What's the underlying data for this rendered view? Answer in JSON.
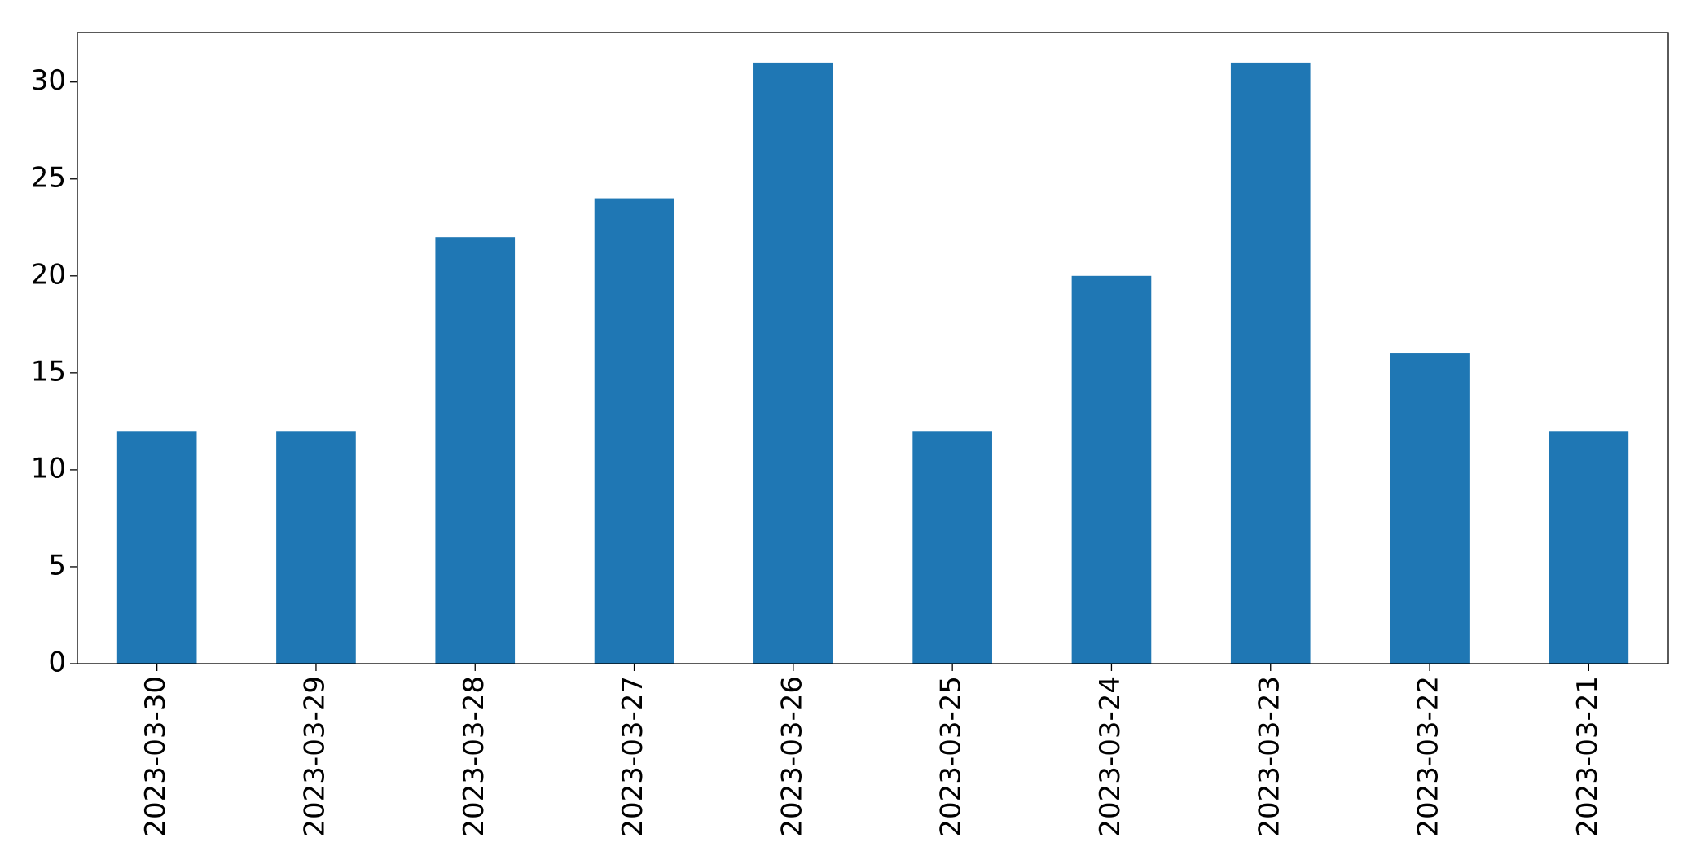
{
  "chart_data": {
    "type": "bar",
    "categories": [
      "2023-03-30",
      "2023-03-29",
      "2023-03-28",
      "2023-03-27",
      "2023-03-26",
      "2023-03-25",
      "2023-03-24",
      "2023-03-23",
      "2023-03-22",
      "2023-03-21"
    ],
    "values": [
      12,
      12,
      22,
      24,
      31,
      12,
      20,
      31,
      16,
      12
    ],
    "color": "#1f77b4",
    "ylim": [
      0,
      32.55
    ],
    "yticks": [
      0,
      5,
      10,
      15,
      20,
      25,
      30
    ],
    "grid": false
  }
}
